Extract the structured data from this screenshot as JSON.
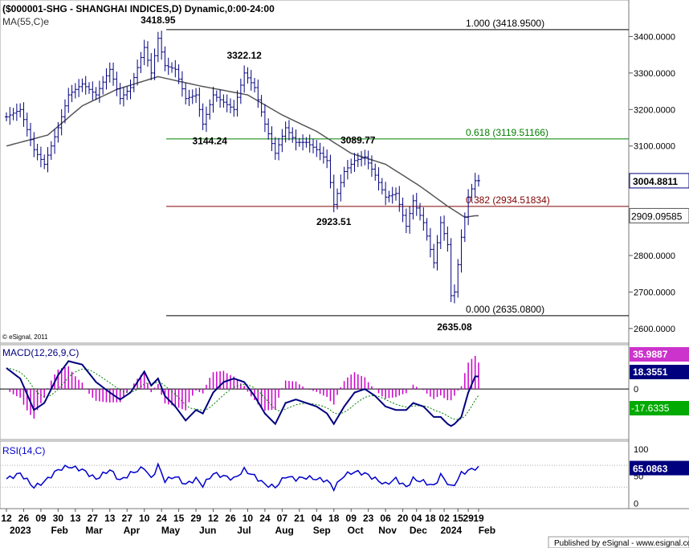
{
  "header": {
    "symbol_line": "($000001-SHG - SHANGHAI INDICES,D) Dynamic,0:00-24:00",
    "ma_label": "MA(55,C)e",
    "copyright": "© eSignal, 2011",
    "footer": "Published by eSignal - www.esignal.com"
  },
  "colors": {
    "price_bars": "#00007f",
    "ma_line": "#555555",
    "fib_black": "#000000",
    "fib_green": "#007f00",
    "fib_red": "#7f0000",
    "macd_line": "#00007f",
    "macd_signal": "#008000",
    "macd_hist": "#cc00cc",
    "rsi_line": "#0000cc",
    "badge_close": "#00007f",
    "badge_ma": "#555555",
    "badge_hist": "#cc33cc",
    "badge_signal": "#00aa00"
  },
  "chart_data": [
    {
      "type": "line",
      "panel": "price",
      "ylim": [
        2560,
        3500
      ],
      "yticks": [
        2600,
        2700,
        2800,
        2900,
        3000,
        3100,
        3200,
        3300,
        3400
      ],
      "ytick_labels": [
        "2600.0000",
        "2700.0000",
        "2800.0000",
        "2900.0000",
        "3000.0000",
        "3100.0000",
        "3200.0000",
        "3300.0000",
        "3400.0000"
      ],
      "last_close": 3004.88,
      "last_close_label": "3004.8811",
      "last_ma": 2909.1,
      "last_ma_label": "2909.09585",
      "anchors": [
        {
          "i": 0,
          "v": 3180
        },
        {
          "i": 4,
          "v": 3200
        },
        {
          "i": 8,
          "v": 3090
        },
        {
          "i": 11,
          "v": 3050
        },
        {
          "i": 15,
          "v": 3150
        },
        {
          "i": 18,
          "v": 3240
        },
        {
          "i": 22,
          "v": 3270
        },
        {
          "i": 26,
          "v": 3240
        },
        {
          "i": 30,
          "v": 3310
        },
        {
          "i": 33,
          "v": 3230
        },
        {
          "i": 36,
          "v": 3260
        },
        {
          "i": 40,
          "v": 3370
        },
        {
          "i": 42,
          "v": 3300
        },
        {
          "i": 44,
          "v": 3395
        },
        {
          "i": 46,
          "v": 3320
        },
        {
          "i": 49,
          "v": 3310
        },
        {
          "i": 52,
          "v": 3230
        },
        {
          "i": 55,
          "v": 3240
        },
        {
          "i": 57,
          "v": 3160
        },
        {
          "i": 60,
          "v": 3240
        },
        {
          "i": 63,
          "v": 3220
        },
        {
          "i": 66,
          "v": 3200
        },
        {
          "i": 69,
          "v": 3300
        },
        {
          "i": 72,
          "v": 3260
        },
        {
          "i": 75,
          "v": 3160
        },
        {
          "i": 78,
          "v": 3080
        },
        {
          "i": 81,
          "v": 3150
        },
        {
          "i": 84,
          "v": 3110
        },
        {
          "i": 87,
          "v": 3110
        },
        {
          "i": 90,
          "v": 3090
        },
        {
          "i": 93,
          "v": 3060
        },
        {
          "i": 95,
          "v": 2940
        },
        {
          "i": 98,
          "v": 3030
        },
        {
          "i": 101,
          "v": 3060
        },
        {
          "i": 104,
          "v": 3070
        },
        {
          "i": 107,
          "v": 3020
        },
        {
          "i": 110,
          "v": 2960
        },
        {
          "i": 113,
          "v": 2970
        },
        {
          "i": 116,
          "v": 2880
        },
        {
          "i": 118,
          "v": 2950
        },
        {
          "i": 121,
          "v": 2890
        },
        {
          "i": 124,
          "v": 2780
        },
        {
          "i": 126,
          "v": 2890
        },
        {
          "i": 128,
          "v": 2830
        },
        {
          "i": 129,
          "v": 2690
        },
        {
          "i": 130,
          "v": 2700
        },
        {
          "i": 132,
          "v": 2850
        },
        {
          "i": 134,
          "v": 2960
        },
        {
          "i": 136,
          "v": 3005
        }
      ],
      "ma_anchors": [
        {
          "i": 0,
          "v": 3100
        },
        {
          "i": 12,
          "v": 3130
        },
        {
          "i": 22,
          "v": 3210
        },
        {
          "i": 32,
          "v": 3255
        },
        {
          "i": 44,
          "v": 3290
        },
        {
          "i": 56,
          "v": 3265
        },
        {
          "i": 70,
          "v": 3240
        },
        {
          "i": 80,
          "v": 3185
        },
        {
          "i": 90,
          "v": 3140
        },
        {
          "i": 100,
          "v": 3080
        },
        {
          "i": 110,
          "v": 3050
        },
        {
          "i": 120,
          "v": 2990
        },
        {
          "i": 128,
          "v": 2935
        },
        {
          "i": 133,
          "v": 2905
        },
        {
          "i": 136,
          "v": 2909
        }
      ],
      "fib_levels": [
        {
          "level": 3418.95,
          "label": "1.000 (3418.9500)",
          "color": "#000000"
        },
        {
          "level": 3119.51,
          "label": "0.618 (3119.51166)",
          "color": "#007f00"
        },
        {
          "level": 2934.52,
          "label": "0.382 (2934.51834)",
          "color": "#7f0000"
        },
        {
          "level": 2635.08,
          "label": "0.000 (2635.0800)",
          "color": "#000000"
        }
      ],
      "annotations": [
        {
          "text": "3418.95",
          "i": 44,
          "v": 3418.95,
          "pos": "above"
        },
        {
          "text": "3322.12",
          "i": 69,
          "v": 3322.12,
          "pos": "above"
        },
        {
          "text": "3144.24",
          "i": 59,
          "v": 3144.24,
          "pos": "below"
        },
        {
          "text": "3089.77",
          "i": 102,
          "v": 3089.77,
          "pos": "above"
        },
        {
          "text": "2923.51",
          "i": 95,
          "v": 2923.51,
          "pos": "below"
        },
        {
          "text": "2635.08",
          "i": 130,
          "v": 2635.08,
          "pos": "below"
        }
      ]
    },
    {
      "type": "line",
      "panel": "macd",
      "title": "MACD(12,26,9,C)",
      "zero_label": "0",
      "macd_value_label": "18.3551",
      "hist_value_label": "35.9887",
      "signal_value_label": "-17.6335",
      "anchors": [
        {
          "i": 0,
          "v": 30
        },
        {
          "i": 4,
          "v": 15
        },
        {
          "i": 8,
          "v": -30
        },
        {
          "i": 11,
          "v": -20
        },
        {
          "i": 15,
          "v": 20
        },
        {
          "i": 18,
          "v": 40
        },
        {
          "i": 22,
          "v": 35
        },
        {
          "i": 26,
          "v": 10
        },
        {
          "i": 30,
          "v": -5
        },
        {
          "i": 33,
          "v": -15
        },
        {
          "i": 36,
          "v": -5
        },
        {
          "i": 40,
          "v": 25
        },
        {
          "i": 42,
          "v": 5
        },
        {
          "i": 44,
          "v": 15
        },
        {
          "i": 46,
          "v": -10
        },
        {
          "i": 49,
          "v": -25
        },
        {
          "i": 52,
          "v": -45
        },
        {
          "i": 55,
          "v": -30
        },
        {
          "i": 57,
          "v": -35
        },
        {
          "i": 60,
          "v": -5
        },
        {
          "i": 63,
          "v": 10
        },
        {
          "i": 66,
          "v": 15
        },
        {
          "i": 69,
          "v": 10
        },
        {
          "i": 72,
          "v": -10
        },
        {
          "i": 75,
          "v": -35
        },
        {
          "i": 78,
          "v": -50
        },
        {
          "i": 81,
          "v": -20
        },
        {
          "i": 84,
          "v": -15
        },
        {
          "i": 87,
          "v": -20
        },
        {
          "i": 90,
          "v": -25
        },
        {
          "i": 93,
          "v": -35
        },
        {
          "i": 95,
          "v": -50
        },
        {
          "i": 98,
          "v": -25
        },
        {
          "i": 101,
          "v": -5
        },
        {
          "i": 104,
          "v": 0
        },
        {
          "i": 107,
          "v": -10
        },
        {
          "i": 110,
          "v": -25
        },
        {
          "i": 113,
          "v": -30
        },
        {
          "i": 116,
          "v": -30
        },
        {
          "i": 118,
          "v": -20
        },
        {
          "i": 121,
          "v": -25
        },
        {
          "i": 124,
          "v": -40
        },
        {
          "i": 126,
          "v": -40
        },
        {
          "i": 128,
          "v": -50
        },
        {
          "i": 129,
          "v": -53
        },
        {
          "i": 130,
          "v": -50
        },
        {
          "i": 132,
          "v": -40
        },
        {
          "i": 134,
          "v": -5
        },
        {
          "i": 136,
          "v": 18
        }
      ],
      "ylim": [
        -70,
        60
      ]
    },
    {
      "type": "line",
      "panel": "rsi",
      "title": "RSI(14,C)",
      "yticks": [
        0,
        50,
        100
      ],
      "ytick_labels": [
        "0",
        "50",
        "100"
      ],
      "reference_levels": [
        30,
        70
      ],
      "value_label": "65.0863",
      "ylim": [
        -5,
        110
      ],
      "anchors": [
        {
          "i": 0,
          "v": 45
        },
        {
          "i": 4,
          "v": 55
        },
        {
          "i": 8,
          "v": 30
        },
        {
          "i": 11,
          "v": 40
        },
        {
          "i": 15,
          "v": 62
        },
        {
          "i": 18,
          "v": 68
        },
        {
          "i": 22,
          "v": 62
        },
        {
          "i": 26,
          "v": 45
        },
        {
          "i": 30,
          "v": 62
        },
        {
          "i": 33,
          "v": 42
        },
        {
          "i": 36,
          "v": 55
        },
        {
          "i": 40,
          "v": 66
        },
        {
          "i": 42,
          "v": 45
        },
        {
          "i": 44,
          "v": 70
        },
        {
          "i": 46,
          "v": 42
        },
        {
          "i": 49,
          "v": 50
        },
        {
          "i": 52,
          "v": 35
        },
        {
          "i": 55,
          "v": 45
        },
        {
          "i": 57,
          "v": 33
        },
        {
          "i": 60,
          "v": 55
        },
        {
          "i": 63,
          "v": 50
        },
        {
          "i": 66,
          "v": 45
        },
        {
          "i": 69,
          "v": 62
        },
        {
          "i": 72,
          "v": 50
        },
        {
          "i": 75,
          "v": 35
        },
        {
          "i": 78,
          "v": 30
        },
        {
          "i": 81,
          "v": 50
        },
        {
          "i": 84,
          "v": 45
        },
        {
          "i": 87,
          "v": 48
        },
        {
          "i": 90,
          "v": 45
        },
        {
          "i": 93,
          "v": 42
        },
        {
          "i": 95,
          "v": 28
        },
        {
          "i": 98,
          "v": 52
        },
        {
          "i": 101,
          "v": 58
        },
        {
          "i": 104,
          "v": 55
        },
        {
          "i": 107,
          "v": 45
        },
        {
          "i": 110,
          "v": 35
        },
        {
          "i": 113,
          "v": 45
        },
        {
          "i": 116,
          "v": 30
        },
        {
          "i": 118,
          "v": 45
        },
        {
          "i": 121,
          "v": 40
        },
        {
          "i": 124,
          "v": 32
        },
        {
          "i": 126,
          "v": 52
        },
        {
          "i": 128,
          "v": 38
        },
        {
          "i": 129,
          "v": 30
        },
        {
          "i": 130,
          "v": 35
        },
        {
          "i": 132,
          "v": 55
        },
        {
          "i": 134,
          "v": 60
        },
        {
          "i": 136,
          "v": 65
        }
      ]
    }
  ],
  "x_axis": {
    "day_labels": [
      {
        "i": 0,
        "text": "12"
      },
      {
        "i": 5,
        "text": "26"
      },
      {
        "i": 10,
        "text": "09"
      },
      {
        "i": 15,
        "text": "30"
      },
      {
        "i": 20,
        "text": "13"
      },
      {
        "i": 25,
        "text": "27"
      },
      {
        "i": 30,
        "text": "13"
      },
      {
        "i": 35,
        "text": "27"
      },
      {
        "i": 40,
        "text": "10"
      },
      {
        "i": 45,
        "text": "24"
      },
      {
        "i": 50,
        "text": "15"
      },
      {
        "i": 55,
        "text": "29"
      },
      {
        "i": 60,
        "text": "12"
      },
      {
        "i": 65,
        "text": "26"
      },
      {
        "i": 70,
        "text": "10"
      },
      {
        "i": 75,
        "text": "24"
      },
      {
        "i": 80,
        "text": "07"
      },
      {
        "i": 85,
        "text": "21"
      },
      {
        "i": 90,
        "text": "04"
      },
      {
        "i": 95,
        "text": "18"
      },
      {
        "i": 100,
        "text": "09"
      },
      {
        "i": 105,
        "text": "23"
      },
      {
        "i": 110,
        "text": "06"
      },
      {
        "i": 115,
        "text": "20"
      },
      {
        "i": 119,
        "text": "04"
      },
      {
        "i": 123,
        "text": "18"
      },
      {
        "i": 127,
        "text": "02"
      },
      {
        "i": 131,
        "text": "15"
      },
      {
        "i": 134,
        "text": "29"
      },
      {
        "i": 137,
        "text": "19"
      }
    ],
    "month_labels": [
      {
        "i": 0,
        "text": "2023"
      },
      {
        "i": 12,
        "text": "Feb"
      },
      {
        "i": 22,
        "text": "Mar"
      },
      {
        "i": 33,
        "text": "Apr"
      },
      {
        "i": 44,
        "text": "May"
      },
      {
        "i": 55,
        "text": "Jun"
      },
      {
        "i": 66,
        "text": "Jul"
      },
      {
        "i": 77,
        "text": "Aug"
      },
      {
        "i": 88,
        "text": "Sep"
      },
      {
        "i": 98,
        "text": "Oct"
      },
      {
        "i": 107,
        "text": "Nov"
      },
      {
        "i": 116,
        "text": "Dec"
      },
      {
        "i": 125,
        "text": "2024"
      },
      {
        "i": 136,
        "text": "Feb"
      }
    ]
  }
}
